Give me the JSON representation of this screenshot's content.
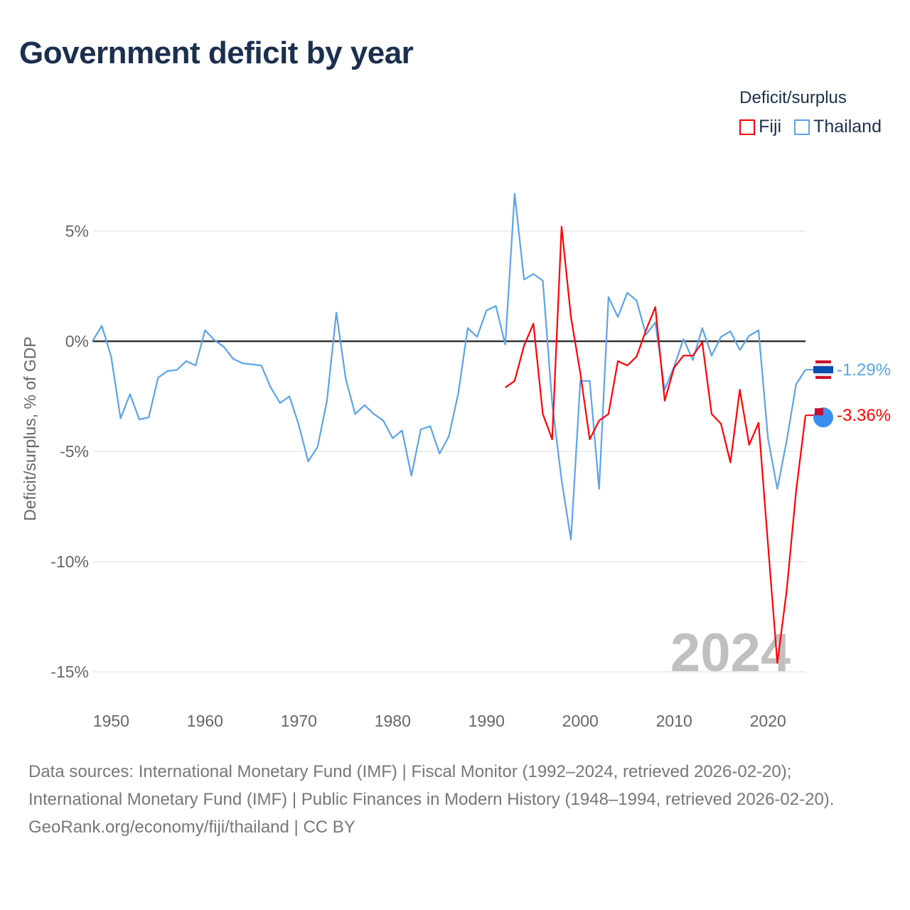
{
  "title": "Government deficit by year",
  "legend": {
    "title": "Deficit/surplus",
    "items": [
      {
        "name": "Fiji",
        "color": "#ff0000"
      },
      {
        "name": "Thailand",
        "color": "#5ba3ea"
      }
    ]
  },
  "chart_data": {
    "type": "line",
    "title": "Government deficit by year",
    "xlabel": "",
    "ylabel": "Deficit/surplus, % of GDP",
    "xlim": [
      1948,
      2024
    ],
    "ylim": [
      -16.5,
      7.5
    ],
    "xticks": [
      1950,
      1960,
      1970,
      1980,
      1990,
      2000,
      2010,
      2020
    ],
    "xtick_labels": [
      "1950",
      "1960",
      "1970",
      "1980",
      "1990",
      "2000",
      "2010",
      "2020"
    ],
    "yticks": [
      5,
      0,
      -5,
      -10,
      -15
    ],
    "ytick_labels": [
      "5%",
      "0%",
      "-5%",
      "-10%",
      "-15%"
    ],
    "grid": true,
    "year_watermark": "2024",
    "series": [
      {
        "name": "Thailand",
        "color": "#5ba3ea",
        "end_label": "-1.29%",
        "start_year": 1948,
        "values": [
          0,
          0.7,
          -0.7,
          -3.5,
          -2.4,
          -3.55,
          -3.45,
          -1.65,
          -1.35,
          -1.3,
          -0.9,
          -1.1,
          0.5,
          0.05,
          -0.25,
          -0.8,
          -1.0,
          -1.05,
          -1.1,
          -2.1,
          -2.8,
          -2.5,
          -3.8,
          -5.45,
          -4.8,
          -2.7,
          1.3,
          -1.7,
          -3.3,
          -2.9,
          -3.3,
          -3.6,
          -4.4,
          -4.05,
          -6.1,
          -4.0,
          -3.85,
          -5.1,
          -4.3,
          -2.35,
          0.6,
          0.2,
          1.4,
          1.6,
          -0.15,
          6.7,
          2.8,
          3.05,
          2.75,
          -2.8,
          -6.3,
          -9.0,
          -1.8,
          -1.8,
          -6.7,
          2.0,
          1.1,
          2.2,
          1.85,
          0.3,
          0.85,
          -2.2,
          -1.15,
          0.1,
          -0.85,
          0.6,
          -0.65,
          0.2,
          0.45,
          -0.4,
          0.25,
          0.5,
          -4.4,
          -6.7,
          -4.5,
          -1.95,
          -1.29
        ]
      },
      {
        "name": "Fiji",
        "color": "#ff0000",
        "end_label": "-3.36%",
        "start_year": 1992,
        "values": [
          -2.1,
          -1.8,
          -0.2,
          0.8,
          -3.3,
          -4.45,
          5.2,
          1.1,
          -1.45,
          -4.45,
          -3.6,
          -3.3,
          -0.9,
          -1.1,
          -0.7,
          0.5,
          1.55,
          -2.7,
          -1.2,
          -0.65,
          -0.65,
          -0.05,
          -3.3,
          -3.75,
          -5.5,
          -2.2,
          -4.7,
          -3.7,
          -9.2,
          -14.6,
          -11.3,
          -6.8,
          -3.36
        ]
      }
    ]
  },
  "footer": {
    "sources": "Data sources: International Monetary Fund (IMF) | Fiscal Monitor (1992–2024, retrieved 2026-02-20); International Monetary Fund (IMF) | Public Finances in Modern History (1948–1994, retrieved 2026-02-20).",
    "link": "GeoRank.org/economy/fiji/thailand | CC BY"
  }
}
